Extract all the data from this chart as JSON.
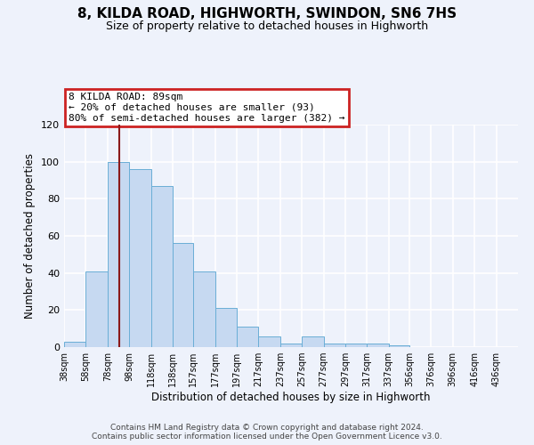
{
  "title": "8, KILDA ROAD, HIGHWORTH, SWINDON, SN6 7HS",
  "subtitle": "Size of property relative to detached houses in Highworth",
  "xlabel": "Distribution of detached houses by size in Highworth",
  "ylabel": "Number of detached properties",
  "bar_color": "#c6d9f1",
  "bar_edge_color": "#6aaed6",
  "background_color": "#eef2fb",
  "grid_color": "#ffffff",
  "bin_labels": [
    "38sqm",
    "58sqm",
    "78sqm",
    "98sqm",
    "118sqm",
    "138sqm",
    "157sqm",
    "177sqm",
    "197sqm",
    "217sqm",
    "237sqm",
    "257sqm",
    "277sqm",
    "297sqm",
    "317sqm",
    "337sqm",
    "356sqm",
    "376sqm",
    "396sqm",
    "416sqm",
    "436sqm"
  ],
  "bin_edges": [
    38,
    58,
    78,
    98,
    118,
    138,
    157,
    177,
    197,
    217,
    237,
    257,
    277,
    297,
    317,
    337,
    356,
    376,
    396,
    416,
    436
  ],
  "bar_heights": [
    3,
    41,
    100,
    96,
    87,
    56,
    41,
    21,
    11,
    6,
    2,
    6,
    2,
    2,
    2,
    1,
    0,
    0,
    0,
    0
  ],
  "ylim": [
    0,
    120
  ],
  "yticks": [
    0,
    20,
    40,
    60,
    80,
    100,
    120
  ],
  "vline_x": 89,
  "vline_color": "#8b1a1a",
  "annotation_title": "8 KILDA ROAD: 89sqm",
  "annotation_line1": "← 20% of detached houses are smaller (93)",
  "annotation_line2": "80% of semi-detached houses are larger (382) →",
  "annotation_box_color": "#cc2222",
  "footer_line1": "Contains HM Land Registry data © Crown copyright and database right 2024.",
  "footer_line2": "Contains public sector information licensed under the Open Government Licence v3.0."
}
